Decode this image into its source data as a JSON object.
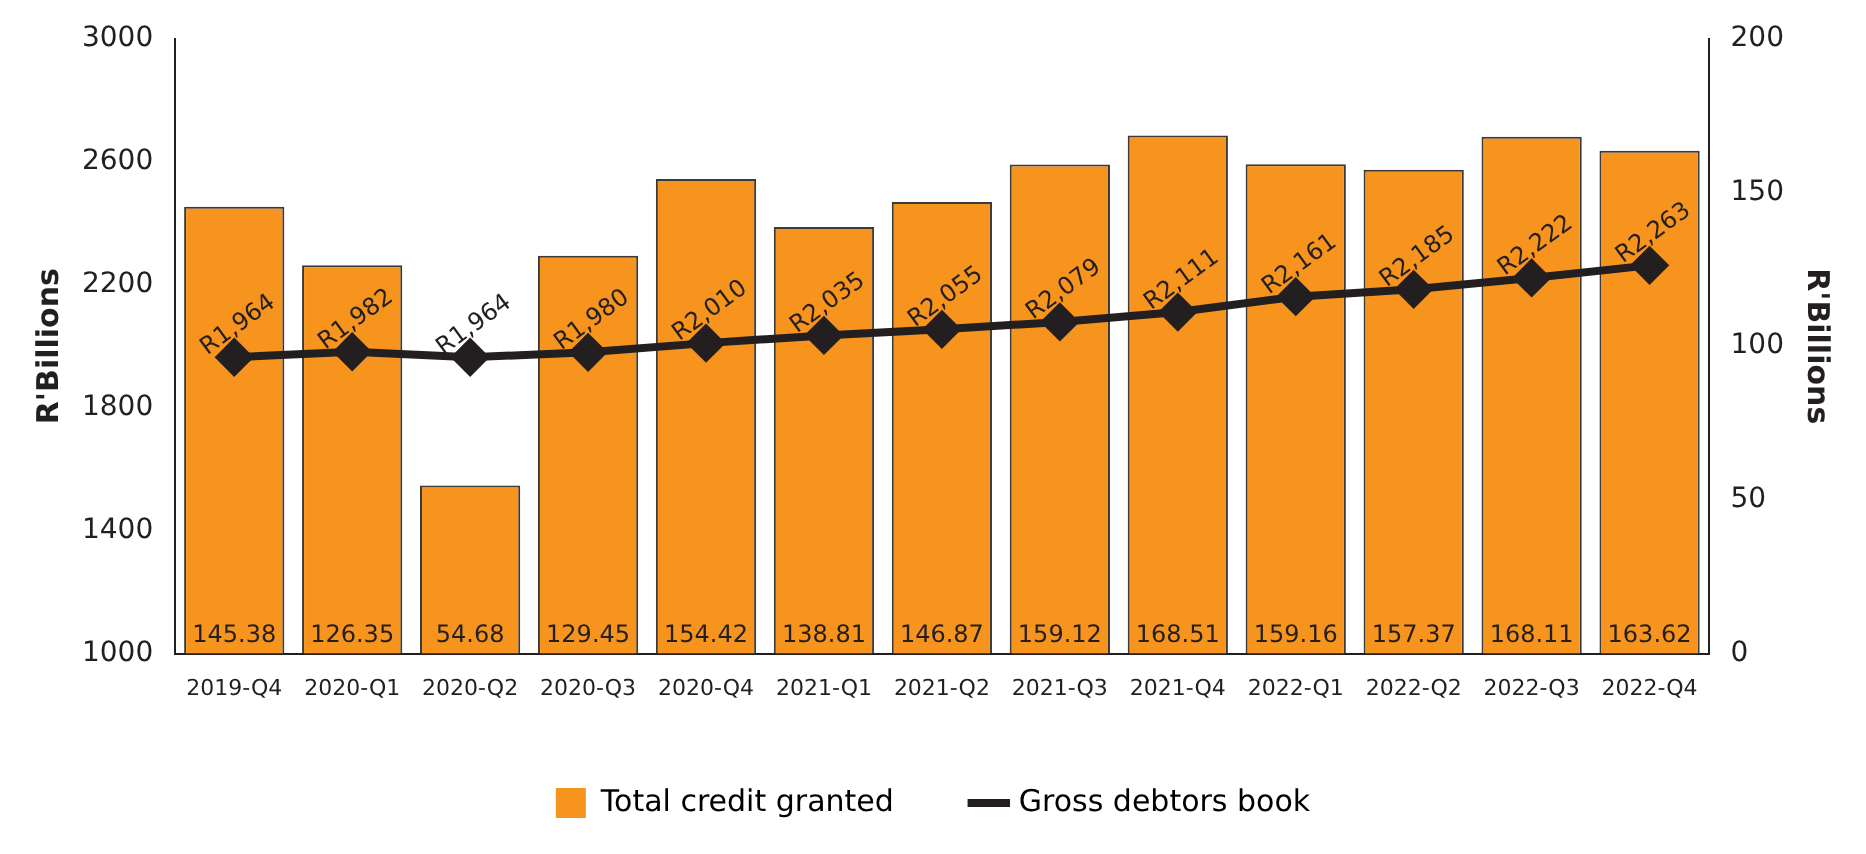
{
  "chart_data": {
    "type": "bar",
    "ylabel": "R'Billions",
    "y2label": "R'Billions",
    "categories": [
      "2019-Q4",
      "2020-Q1",
      "2020-Q2",
      "2020-Q3",
      "2020-Q4",
      "2021-Q1",
      "2021-Q2",
      "2021-Q3",
      "2021-Q4",
      "2022-Q1",
      "2022-Q2",
      "2022-Q3",
      "2022-Q4"
    ],
    "series": [
      {
        "name": "Total credit granted",
        "axis": "y2",
        "color": "#f7941d",
        "values": [
          145.38,
          126.35,
          54.68,
          129.45,
          154.42,
          138.81,
          146.87,
          159.12,
          168.51,
          159.16,
          157.37,
          168.11,
          163.62
        ],
        "value_labels": [
          "145.38",
          "126.35",
          "54.68",
          "129.45",
          "154.42",
          "138.81",
          "146.87",
          "159.12",
          "168.51",
          "159.16",
          "157.37",
          "168.11",
          "163.62"
        ]
      },
      {
        "name": "Gross debtors book",
        "type": "line",
        "color": "#231f20",
        "values": [
          1964,
          1982,
          1964,
          1980,
          2010,
          2035,
          2055,
          2079,
          2111,
          2161,
          2185,
          2222,
          2263
        ],
        "value_labels": [
          "R1,964",
          "R1,982",
          "R1,964",
          "R1,980",
          "R2,010",
          "R2,035",
          "R2,055",
          "R2,079",
          "R2,111",
          "R2,161",
          "R2,185",
          "R2,222",
          "R2,263"
        ],
        "marker": "diamond"
      }
    ],
    "ylim": [
      1000,
      3000
    ],
    "yticks": [
      1000,
      1400,
      1800,
      2200,
      2600,
      3000
    ],
    "y2lim": [
      0,
      200
    ],
    "y2ticks": [
      0,
      50,
      100,
      150,
      200
    ],
    "grid": false,
    "legend": "bottom"
  }
}
